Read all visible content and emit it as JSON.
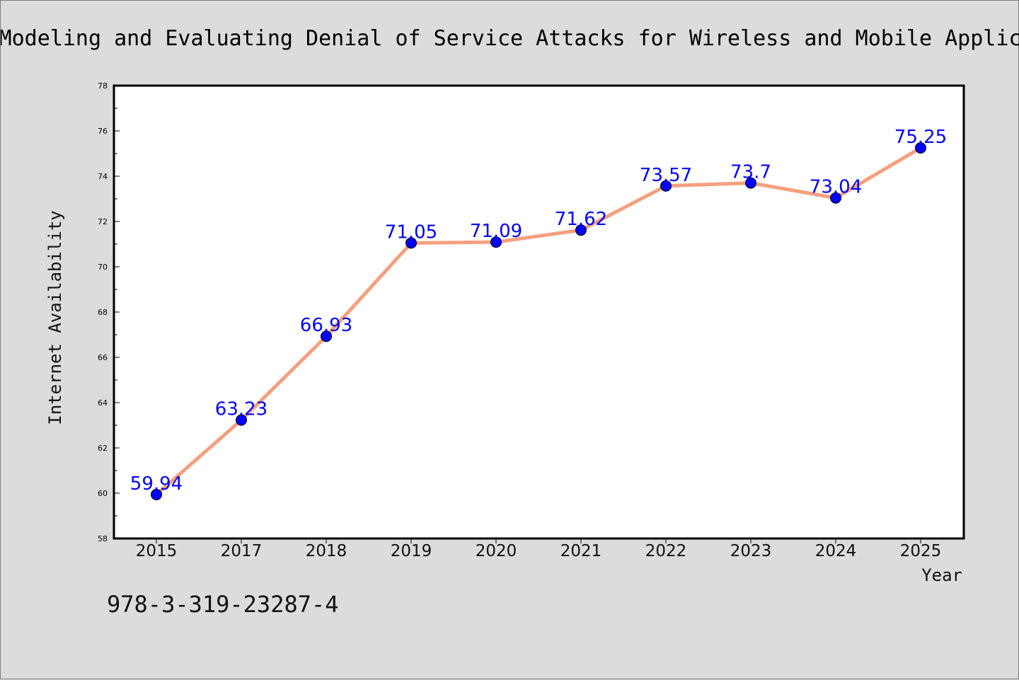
{
  "chart_data": {
    "type": "line",
    "title": "Modeling and Evaluating Denial of Service Attacks for Wireless and Mobile Applic",
    "xlabel": "Year",
    "ylabel": "Internet Availability",
    "categories": [
      "2015",
      "2017",
      "2018",
      "2019",
      "2020",
      "2021",
      "2022",
      "2023",
      "2024",
      "2025"
    ],
    "series": [
      {
        "values": [
          59.94,
          63.23,
          66.93,
          71.05,
          71.09,
          71.62,
          73.57,
          73.7,
          73.04,
          75.25
        ],
        "labels": [
          "59.94",
          "63.23",
          "66.93",
          "71.05",
          "71.09",
          "71.62",
          "73.57",
          "73.7",
          "73.04",
          "75.25"
        ]
      }
    ],
    "ylim": [
      58,
      78
    ],
    "yticks": [
      58,
      60,
      62,
      64,
      66,
      68,
      70,
      72,
      74,
      76,
      78
    ],
    "grid": false,
    "line_color": "#f4a07e",
    "marker_color": "#0000ff",
    "label_color": "#0000ff"
  },
  "footer": {
    "isbn": "978-3-319-23287-4"
  }
}
